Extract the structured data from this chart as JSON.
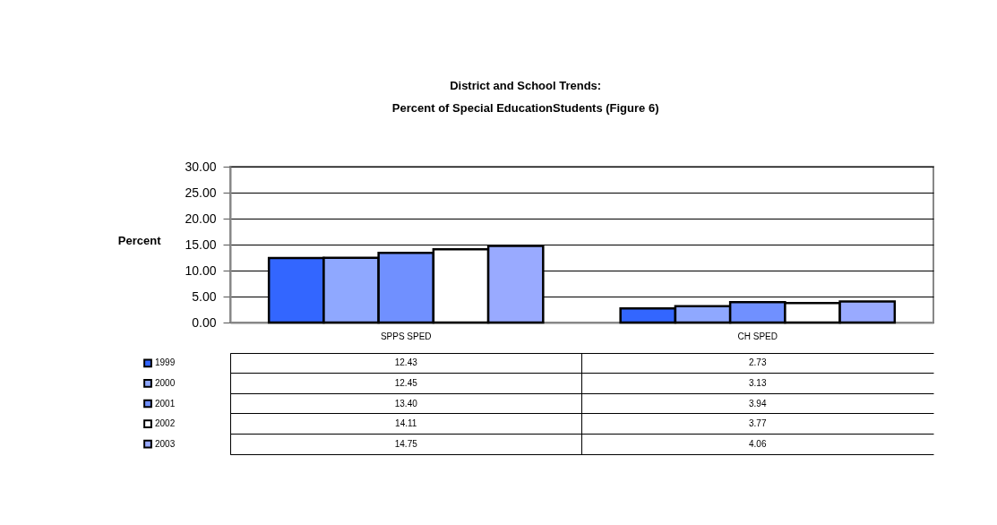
{
  "chart_data": {
    "type": "bar",
    "title": "District and School Trends:",
    "subtitle": "Percent of Special EducationStudents (Figure 6)",
    "ylabel": "Percent",
    "categories": [
      "SPPS SPED",
      "CH SPED"
    ],
    "series": [
      {
        "name": "1999",
        "color": "#3366ff",
        "values": [
          12.43,
          2.73
        ],
        "value_labels": [
          "12.43",
          "2.73"
        ]
      },
      {
        "name": "2000",
        "color": "#8fa8ff",
        "values": [
          12.45,
          3.13
        ],
        "value_labels": [
          "12.45",
          "3.13"
        ]
      },
      {
        "name": "2001",
        "color": "#7090ff",
        "values": [
          13.4,
          3.94
        ],
        "value_labels": [
          "13.40",
          "3.94"
        ]
      },
      {
        "name": "2002",
        "color": "#ffffff",
        "values": [
          14.11,
          3.77
        ],
        "value_labels": [
          "14.11",
          "3.77"
        ]
      },
      {
        "name": "2003",
        "color": "#99aaff",
        "values": [
          14.75,
          4.06
        ],
        "value_labels": [
          "14.75",
          "4.06"
        ]
      }
    ],
    "ylim": [
      0,
      30
    ],
    "yticks": [
      {
        "value": 0,
        "label": "0.00"
      },
      {
        "value": 5,
        "label": "5.00"
      },
      {
        "value": 10,
        "label": "10.00"
      },
      {
        "value": 15,
        "label": "15.00"
      },
      {
        "value": 20,
        "label": "20.00"
      },
      {
        "value": 25,
        "label": "25.00"
      },
      {
        "value": 30,
        "label": "30.00"
      }
    ],
    "grid": "y",
    "legend": "bottom left"
  }
}
